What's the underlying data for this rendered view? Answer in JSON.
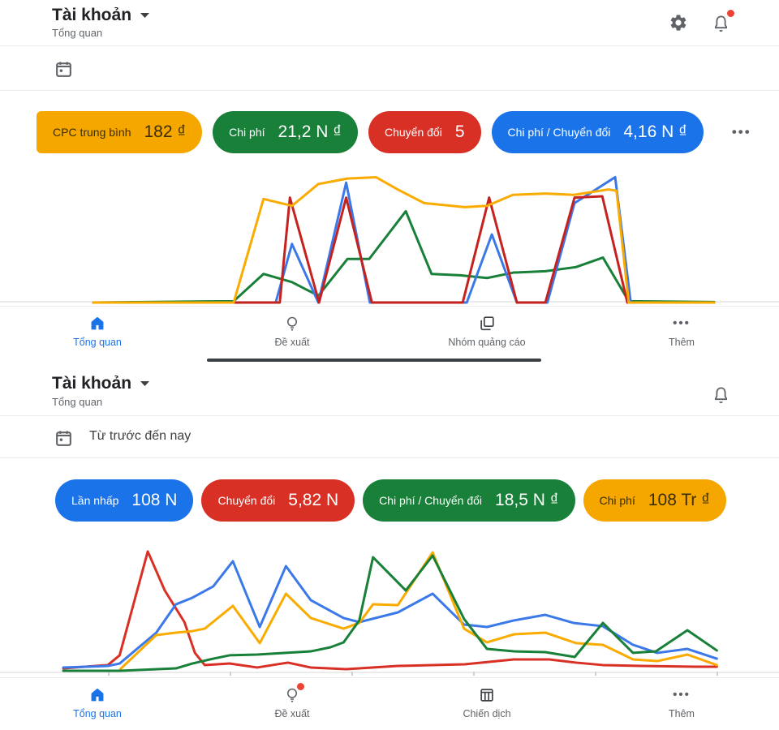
{
  "s1": {
    "header": {
      "title": "Tài khoản",
      "subtitle": "Tổng quan"
    },
    "metrics": [
      {
        "label": "CPC trung bình",
        "value": "182 ₫",
        "color": "#F5A700",
        "text_color": "#3b2d00"
      },
      {
        "label": "Chi phí",
        "value": "21,2 N ₫",
        "color": "#188038",
        "text_color": "#ffffff"
      },
      {
        "label": "Chuyển đổi",
        "value": "5",
        "color": "#D93025",
        "text_color": "#ffffff"
      },
      {
        "label": "Chi phí / Chuyển đổi",
        "value": "4,16 N ₫",
        "color": "#1A73E8",
        "text_color": "#ffffff"
      }
    ],
    "more_dots": "•••",
    "nav": [
      {
        "label": "Tổng quan"
      },
      {
        "label": "Đề xuất"
      },
      {
        "label": "Nhóm quảng cáo"
      },
      {
        "label": "Thêm",
        "dots": "•••"
      }
    ]
  },
  "s2": {
    "header": {
      "title": "Tài khoản",
      "subtitle": "Tổng quan"
    },
    "date_range": "Từ trước đến nay",
    "metrics": [
      {
        "label": "Lần nhấp",
        "value": "108 N",
        "color": "#1A73E8",
        "text_color": "#ffffff"
      },
      {
        "label": "Chuyển đổi",
        "value": "5,82 N",
        "color": "#D93025",
        "text_color": "#ffffff"
      },
      {
        "label": "Chi phí / Chuyển đổi",
        "value": "18,5 N ₫",
        "color": "#188038",
        "text_color": "#ffffff"
      },
      {
        "label": "Chi phí",
        "value": "108 Tr ₫",
        "color": "#F5A700",
        "text_color": "#3b2d00"
      }
    ],
    "nav": [
      {
        "label": "Tổng quan"
      },
      {
        "label": "Đề xuất"
      },
      {
        "label": "Chiến dịch"
      },
      {
        "label": "Thêm",
        "dots": "•••"
      }
    ]
  },
  "colors": {
    "active": "#1A73E8",
    "inactive_icon": "#5f6368",
    "notification_badge": "#EA4335"
  },
  "chart_data": [
    {
      "type": "line",
      "id": "chart1",
      "title": "",
      "x_axis": "time (no labels shown)",
      "y_axis": "value (no labels shown)",
      "grid": false,
      "legend": "none (series match metric pill colors)",
      "series": [
        {
          "name": "Chuyển đổi (green)",
          "color": "#188038",
          "points": [
            [
              8.4,
              100
            ],
            [
              29.1,
              99
            ],
            [
              33.5,
              79
            ],
            [
              37.7,
              85
            ],
            [
              41.6,
              95
            ],
            [
              45.9,
              68
            ],
            [
              49.1,
              68
            ],
            [
              54.5,
              33
            ],
            [
              58.3,
              79
            ],
            [
              62.5,
              80
            ],
            [
              66.5,
              82
            ],
            [
              70.4,
              78
            ],
            [
              75.1,
              77
            ],
            [
              79.6,
              74
            ],
            [
              83.6,
              67
            ],
            [
              87.4,
              99
            ],
            [
              100,
              99.6
            ]
          ]
        },
        {
          "name": "Chi phí / Chuyển đổi (blue)",
          "color": "#3B78E8",
          "points": [
            [
              8.4,
              100
            ],
            [
              35.3,
              100
            ],
            [
              37.7,
              57
            ],
            [
              41.6,
              100
            ],
            [
              45.7,
              12
            ],
            [
              49.2,
              100
            ],
            [
              63.5,
              100
            ],
            [
              67.2,
              50
            ],
            [
              70.9,
              100
            ],
            [
              75.4,
              100
            ],
            [
              79.4,
              27
            ],
            [
              85.4,
              8
            ],
            [
              87.7,
              100
            ],
            [
              100,
              100
            ]
          ]
        },
        {
          "name": "Chi phí (red)",
          "color": "#C5221F",
          "points": [
            [
              8.4,
              100
            ],
            [
              35.9,
              100
            ],
            [
              37.4,
              23
            ],
            [
              41.7,
              100
            ],
            [
              45.7,
              23
            ],
            [
              49.5,
              100
            ],
            [
              62.9,
              100
            ],
            [
              66.8,
              23
            ],
            [
              70.9,
              100
            ],
            [
              75.1,
              100
            ],
            [
              79.4,
              23
            ],
            [
              83.5,
              22
            ],
            [
              87.2,
              100
            ],
            [
              100,
              100
            ]
          ]
        },
        {
          "name": "CPC trung bình (orange)",
          "color": "#F9AB00",
          "points": [
            [
              8.4,
              100
            ],
            [
              29.1,
              100
            ],
            [
              33.5,
              24
            ],
            [
              37.7,
              29
            ],
            [
              41.6,
              13
            ],
            [
              45.9,
              9
            ],
            [
              50.1,
              8
            ],
            [
              53.3,
              17
            ],
            [
              57.2,
              27
            ],
            [
              63.2,
              30
            ],
            [
              66.5,
              29
            ],
            [
              70.3,
              21
            ],
            [
              75.1,
              20
            ],
            [
              79.3,
              21
            ],
            [
              84.4,
              17
            ],
            [
              85.6,
              18
            ],
            [
              87.4,
              100
            ],
            [
              100,
              100
            ]
          ]
        }
      ]
    },
    {
      "type": "line",
      "id": "chart2",
      "title": "",
      "x_axis": "time (no labels shown, light baseline with small ticks)",
      "y_axis": "value (no labels shown)",
      "grid": false,
      "legend": "none (series match metric pill colors)",
      "series": [
        {
          "name": "Chuyển đổi (red)",
          "color": "#D93025",
          "points": [
            [
              0,
              97.5
            ],
            [
              6.8,
              94.9
            ],
            [
              8.6,
              87.3
            ],
            [
              12.9,
              6.3
            ],
            [
              15.5,
              36.7
            ],
            [
              18.5,
              61.4
            ],
            [
              20.1,
              85.4
            ],
            [
              21.6,
              94.9
            ],
            [
              25.4,
              93.7
            ],
            [
              29.6,
              96.8
            ],
            [
              34.3,
              93
            ],
            [
              37.8,
              96.8
            ],
            [
              43.2,
              98.1
            ],
            [
              51.1,
              95.6
            ],
            [
              61.3,
              94.3
            ],
            [
              68.8,
              90.5
            ],
            [
              74.2,
              90.5
            ],
            [
              78.3,
              93
            ],
            [
              82.4,
              94.9
            ],
            [
              88.2,
              95.6
            ],
            [
              96.5,
              96.2
            ],
            [
              99.8,
              96.2
            ]
          ]
        },
        {
          "name": "Lần nhấp (blue)",
          "color": "#3B78E8",
          "points": [
            [
              0,
              96.8
            ],
            [
              6.8,
              95.6
            ],
            [
              8.6,
              93.7
            ],
            [
              14.2,
              69.6
            ],
            [
              17.2,
              47.5
            ],
            [
              19.7,
              42.4
            ],
            [
              22.9,
              33.5
            ],
            [
              25.9,
              13.9
            ],
            [
              30,
              65.2
            ],
            [
              34,
              17.7
            ],
            [
              37.8,
              44.3
            ],
            [
              42.8,
              58.2
            ],
            [
              45.2,
              61.4
            ],
            [
              51.1,
              53.8
            ],
            [
              56.4,
              39.2
            ],
            [
              61.2,
              63.3
            ],
            [
              64.7,
              65.2
            ],
            [
              68.8,
              60.1
            ],
            [
              73.6,
              55.7
            ],
            [
              77.9,
              62
            ],
            [
              82.4,
              64.6
            ],
            [
              87,
              79.1
            ],
            [
              90.7,
              85.4
            ],
            [
              95.3,
              82.3
            ],
            [
              99.8,
              89.9
            ]
          ]
        },
        {
          "name": "Chi phí (orange)",
          "color": "#F9AB00",
          "points": [
            [
              8.7,
              98.1
            ],
            [
              14.2,
              71.5
            ],
            [
              17.2,
              69.6
            ],
            [
              19.7,
              68.4
            ],
            [
              21.6,
              66.5
            ],
            [
              25.9,
              48.7
            ],
            [
              30,
              77.8
            ],
            [
              34,
              39.2
            ],
            [
              37.8,
              58.2
            ],
            [
              42.8,
              66.5
            ],
            [
              45.2,
              62
            ],
            [
              47.3,
              47.5
            ],
            [
              51.1,
              48.1
            ],
            [
              56.4,
              7
            ],
            [
              61.2,
              66.5
            ],
            [
              64.7,
              77.2
            ],
            [
              68.8,
              70.9
            ],
            [
              73.6,
              69.6
            ],
            [
              78.3,
              77.8
            ],
            [
              82.4,
              79.1
            ],
            [
              87,
              90.5
            ],
            [
              90.7,
              91.8
            ],
            [
              95.3,
              86.7
            ],
            [
              99.8,
              94.9
            ]
          ]
        },
        {
          "name": "Chi phí / Chuyển đổi (green)",
          "color": "#188038",
          "points": [
            [
              0,
              99.4
            ],
            [
              8.7,
              99.4
            ],
            [
              17.2,
              97.5
            ],
            [
              19.7,
              93.7
            ],
            [
              22.9,
              89.9
            ],
            [
              25.4,
              87.3
            ],
            [
              29.6,
              86.7
            ],
            [
              34,
              85.4
            ],
            [
              37.8,
              84.2
            ],
            [
              40.8,
              81
            ],
            [
              42.8,
              77.2
            ],
            [
              45.2,
              60.1
            ],
            [
              47.3,
              10.8
            ],
            [
              52.3,
              36.7
            ],
            [
              56.4,
              9.5
            ],
            [
              61.2,
              58.9
            ],
            [
              64.7,
              82.3
            ],
            [
              68.8,
              84.2
            ],
            [
              73.6,
              84.8
            ],
            [
              78.1,
              88.6
            ],
            [
              82.4,
              62
            ],
            [
              87,
              85.4
            ],
            [
              90.5,
              84.2
            ],
            [
              95.3,
              67.7
            ],
            [
              99.8,
              83.5
            ]
          ]
        }
      ]
    }
  ]
}
